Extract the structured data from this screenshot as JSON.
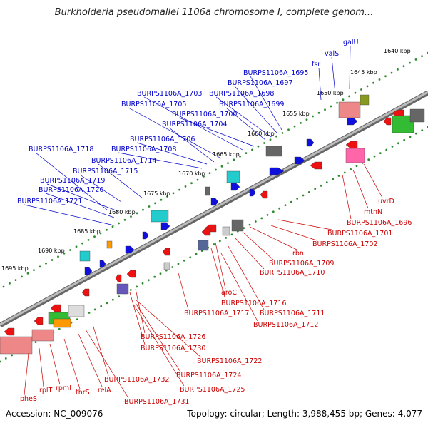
{
  "title": "Burkholderia pseudomallei 1106a chromosome I, complete genom...",
  "footer": {
    "accession": "Accession: NC_009076",
    "summary": "Topology: circular; Length: 3,988,455 bp; Genes: 4,077"
  },
  "scale_labels": [
    "1640 kbp",
    "1645 kbp",
    "1650 kbp",
    "1655 kbp",
    "1660 kbp",
    "1665 kbp",
    "1670 kbp",
    "1675 kbp",
    "1680 kbp",
    "1685 kbp",
    "1690 kbp",
    "1695 kbp"
  ],
  "forward_genes": [
    "galU",
    "valS",
    "fsr",
    "BURPS1106A_1695",
    "BURPS1106A_1697",
    "BURPS1106A_1698",
    "BURPS1106A_1699",
    "BURPS1106A_1700",
    "BURPS1106A_1703",
    "BURPS1106A_1705",
    "BURPS1106A_1704",
    "BURPS1106A_1706",
    "BURPS1106A_1708",
    "BURPS1106A_1718",
    "BURPS1106A_1714",
    "BURPS1106A_1715",
    "BURPS1106A_1719",
    "BURPS1106A_1720",
    "BURPS1106A_1721"
  ],
  "reverse_genes": [
    "uvrD",
    "mtnN",
    "BURPS1106A_1696",
    "BURPS1106A_1701",
    "BURPS1106A_1702",
    "rbn",
    "BURPS1106A_1709",
    "BURPS1106A_1710",
    "aroC",
    "BURPS1106A_1716",
    "BURPS1106A_1711",
    "BURPS1106A_1717",
    "BURPS1106A_1712",
    "BURPS1106A_1726",
    "BURPS1106A_1730",
    "BURPS1106A_1722",
    "BURPS1106A_1724",
    "BURPS1106A_1725",
    "BURPS1106A_1732",
    "BURPS1106A_1731",
    "pheS",
    "rplT",
    "rpmI",
    "thrS",
    "relA"
  ],
  "colors": {
    "backbone": "#888888",
    "ticks": "#2e8b2e",
    "forward_label": "#0000cc",
    "reverse_label": "#cc0000",
    "feature_blue": "#1010dd",
    "feature_red": "#ee1111",
    "feature_cyan": "#22cccc",
    "feature_gray": "#666666",
    "feature_orange": "#ff9900",
    "feature_green": "#33bb33",
    "feature_pink": "#ff66aa",
    "feature_olive": "#889922",
    "feature_salmon": "#ee8888",
    "feature_slate": "#556699",
    "feature_purple": "#6655bb"
  }
}
